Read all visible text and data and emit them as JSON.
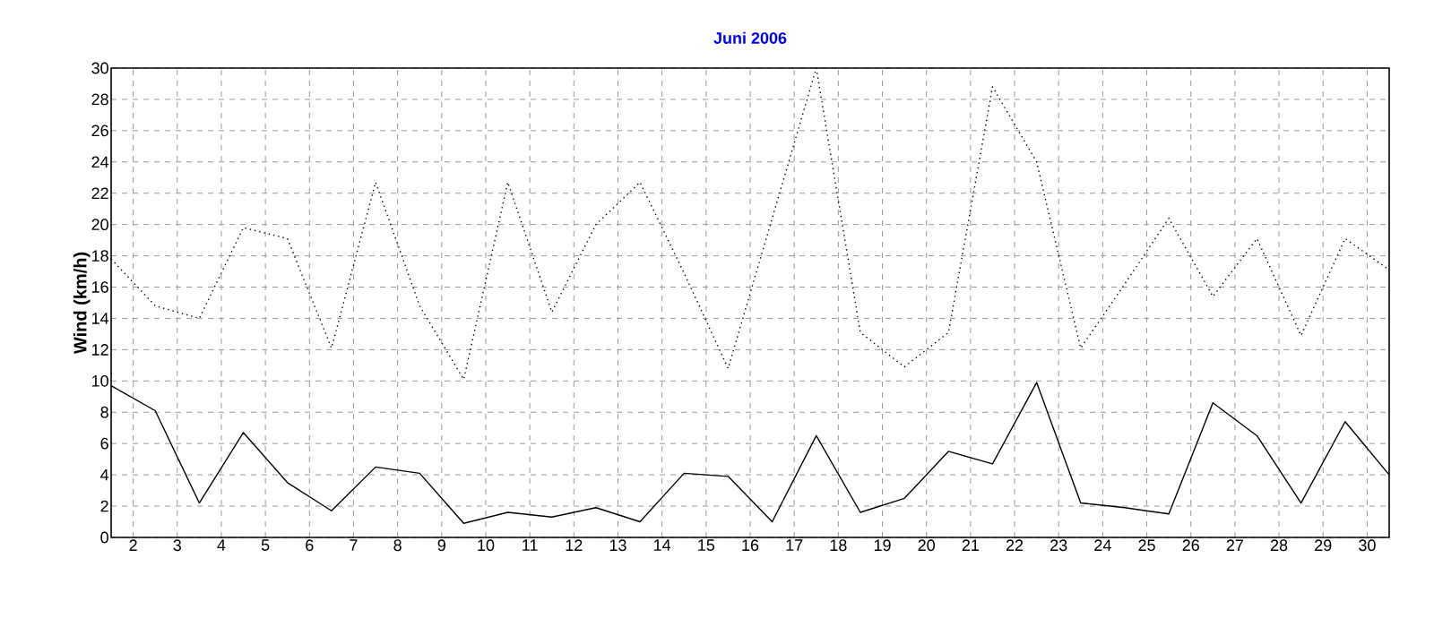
{
  "chart_data": {
    "type": "line",
    "title": "Juni 2006",
    "ylabel": "Wind  (km/h)",
    "x": [
      1.5,
      2.5,
      3.5,
      4.5,
      5.5,
      6.5,
      7.5,
      8.5,
      9.5,
      10.5,
      11.5,
      12.5,
      13.5,
      14.5,
      15.5,
      16.5,
      17.5,
      18.5,
      19.5,
      20.5,
      21.5,
      22.5,
      23.5,
      24.5,
      25.5,
      26.5,
      27.5,
      28.5,
      29.5,
      30.5
    ],
    "series": [
      {
        "color": "#000000",
        "line_style": "dotted",
        "values": [
          17.8,
          14.8,
          14.0,
          19.8,
          19.1,
          12.1,
          22.7,
          14.8,
          10.1,
          22.7,
          14.4,
          20.0,
          22.7,
          16.9,
          10.8,
          20.4,
          30.0,
          13.1,
          10.9,
          13.1,
          28.8,
          24.0,
          12.1,
          16.2,
          20.4,
          15.4,
          19.1,
          12.9,
          19.1,
          17.1
        ]
      },
      {
        "color": "#000000",
        "line_style": "solid",
        "values": [
          9.7,
          8.1,
          2.2,
          6.7,
          3.5,
          1.7,
          4.5,
          4.1,
          0.9,
          1.6,
          1.3,
          1.9,
          1.0,
          4.1,
          3.9,
          1.0,
          6.5,
          1.6,
          2.5,
          5.5,
          4.7,
          9.9,
          2.2,
          1.9,
          1.5,
          8.6,
          6.5,
          2.2,
          7.4,
          4.0
        ]
      }
    ],
    "xlim": [
      1.5,
      30.5
    ],
    "xticks": [
      2,
      3,
      4,
      5,
      6,
      7,
      8,
      9,
      10,
      11,
      12,
      13,
      14,
      15,
      16,
      17,
      18,
      19,
      20,
      21,
      22,
      23,
      24,
      25,
      26,
      27,
      28,
      29,
      30
    ],
    "ylim": [
      0,
      30
    ],
    "yticks": [
      0,
      2,
      4,
      6,
      8,
      10,
      12,
      14,
      16,
      18,
      20,
      22,
      24,
      26,
      28,
      30
    ],
    "grid": true,
    "legend": false,
    "marker": "none"
  }
}
